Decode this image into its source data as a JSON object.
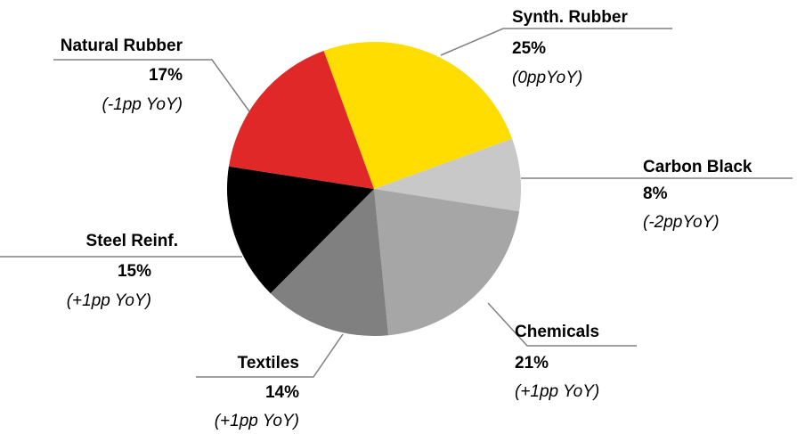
{
  "chart_data": {
    "type": "pie",
    "categories": [
      "Synth. Rubber",
      "Carbon Black",
      "Chemicals",
      "Textiles",
      "Steel Reinf.",
      "Natural Rubber"
    ],
    "values": [
      25,
      8,
      21,
      14,
      15,
      17
    ],
    "notes": [
      "(0ppYoY)",
      "(-2ppYoY)",
      "(+1pp YoY)",
      "(+1pp YoY)",
      "(+1pp YoY)",
      "(-1pp YoY)"
    ],
    "colors": [
      "#ffdd00",
      "#c8c8c8",
      "#a6a6a6",
      "#808080",
      "#000000",
      "#e02828"
    ]
  }
}
